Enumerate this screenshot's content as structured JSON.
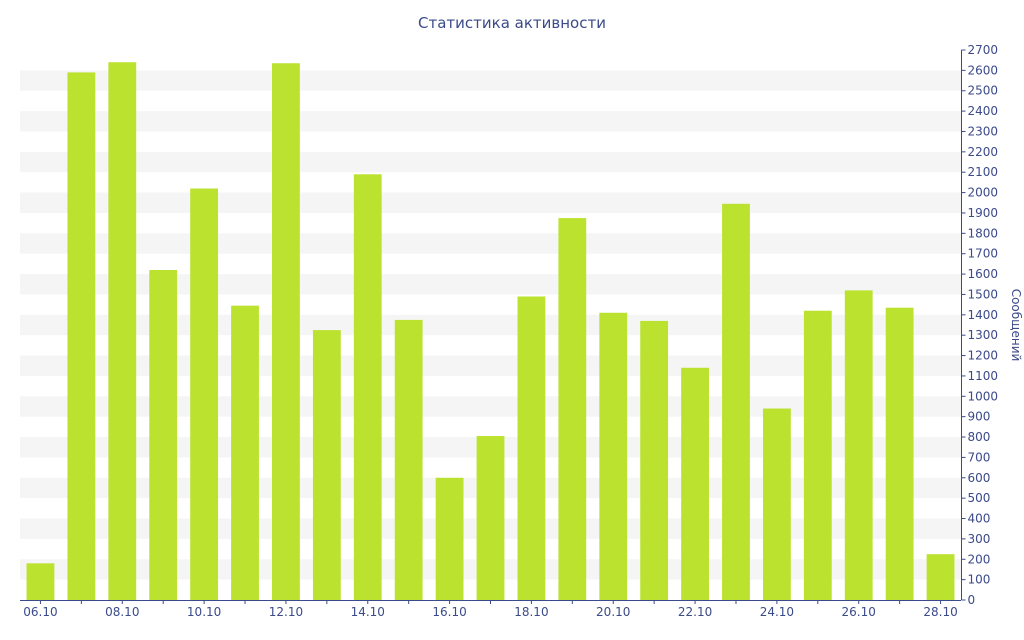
{
  "chart_data": {
    "type": "bar",
    "title": "Статистика активности",
    "xlabel": "",
    "ylabel": "Сообщений",
    "y_axis_side": "right",
    "ylim": [
      0,
      2700
    ],
    "y_tick_step": 100,
    "categories": [
      "06.10",
      "07.10",
      "08.10",
      "09.10",
      "10.10",
      "11.10",
      "12.10",
      "13.10",
      "14.10",
      "15.10",
      "16.10",
      "17.10",
      "18.10",
      "19.10",
      "20.10",
      "21.10",
      "22.10",
      "23.10",
      "24.10",
      "25.10",
      "26.10",
      "27.10",
      "28.10"
    ],
    "x_tick_labels_shown": [
      "06.10",
      "08.10",
      "10.10",
      "12.10",
      "14.10",
      "16.10",
      "18.10",
      "20.10",
      "22.10",
      "24.10",
      "26.10",
      "28.10"
    ],
    "series": [
      {
        "values": [
          180,
          2590,
          2640,
          1620,
          2020,
          1445,
          2635,
          1325,
          2090,
          1375,
          600,
          805,
          1490,
          1875,
          1410,
          1370,
          1140,
          1945,
          940,
          1420,
          1520,
          1435,
          225
        ]
      }
    ],
    "grid": "alternating horizontal bands",
    "colors": {
      "bar": "#bce230",
      "band": "#f5f5f5",
      "axis": "#3b4a8a",
      "text": "#3b4a8a"
    }
  }
}
